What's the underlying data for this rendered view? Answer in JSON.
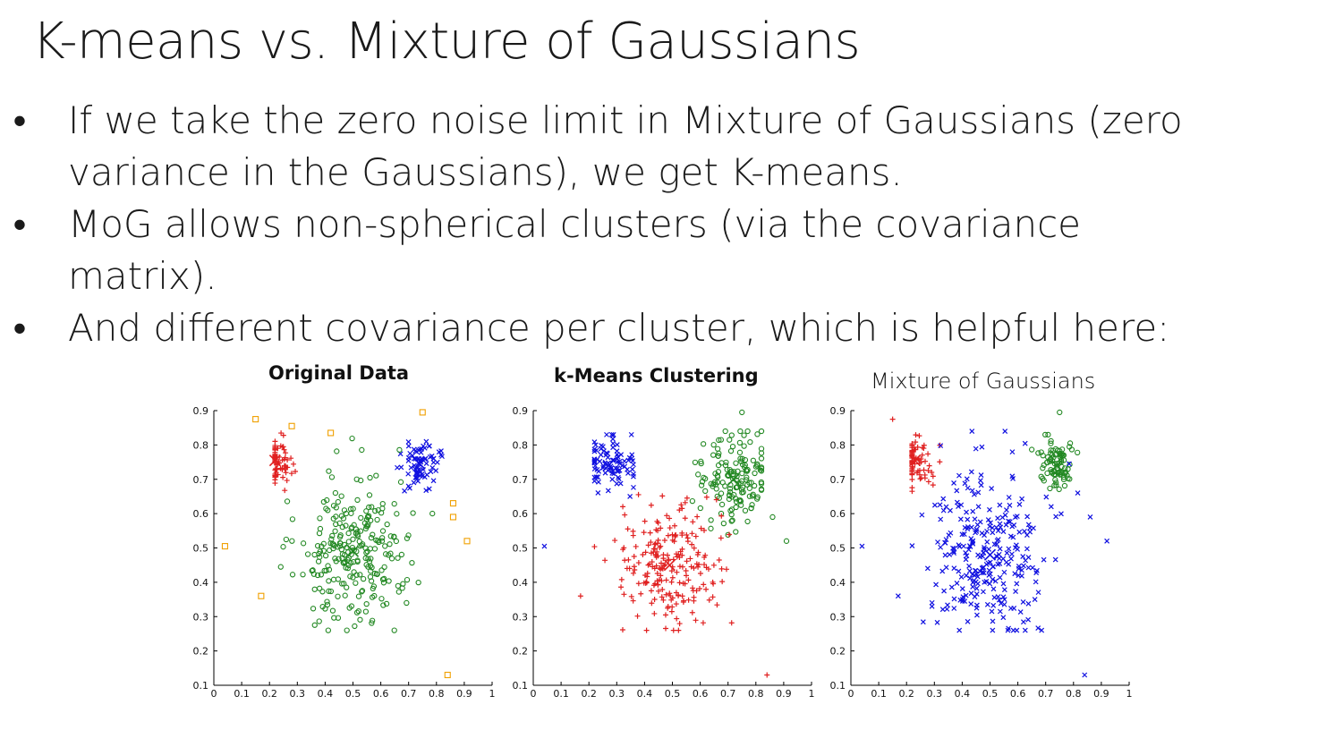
{
  "slide": {
    "title": "K-means vs. Mixture of Gaussians",
    "bullets": [
      {
        "marker": "•",
        "text": "If we take the zero noise limit in Mixture of Gaussians (zero variance in the Gaussians), we get K-means."
      },
      {
        "marker": "•",
        "text": "MoG allows non-spherical clusters (via the covariance matrix)."
      },
      {
        "marker": "•",
        "text": "And different covariance per cluster, which is helpful here:"
      }
    ]
  },
  "colors": {
    "red": "#e02020",
    "blue": "#1010e0",
    "green": "#228822",
    "orange": "#f0a000"
  },
  "chart_data": [
    {
      "type": "scatter",
      "title": "Original Data",
      "xlim": [
        0,
        1
      ],
      "ylim": [
        0.1,
        0.9
      ],
      "xticks": [
        "0",
        "0.1",
        "0.2",
        "0.3",
        "0.4",
        "0.5",
        "0.6",
        "0.7",
        "0.8",
        "0.9",
        "1"
      ],
      "yticks": [
        "0.1",
        "0.2",
        "0.3",
        "0.4",
        "0.5",
        "0.6",
        "0.7",
        "0.8",
        "0.9"
      ],
      "series": [
        {
          "color": "red",
          "marker": "plus",
          "cluster": {
            "cx": 0.22,
            "cy": 0.755,
            "sx": 0.035,
            "sy": 0.035,
            "n": 70
          }
        },
        {
          "color": "blue",
          "marker": "x",
          "cluster": {
            "cx": 0.74,
            "cy": 0.745,
            "sx": 0.035,
            "sy": 0.035,
            "n": 75
          }
        },
        {
          "color": "green",
          "marker": "circle",
          "cluster": {
            "cx": 0.5,
            "cy": 0.49,
            "sx": 0.1,
            "sy": 0.11,
            "n": 260
          }
        },
        {
          "color": "orange",
          "marker": "square",
          "points": [
            [
              0.15,
              0.875
            ],
            [
              0.28,
              0.855
            ],
            [
              0.42,
              0.835
            ],
            [
              0.75,
              0.895
            ],
            [
              0.04,
              0.505
            ],
            [
              0.17,
              0.36
            ],
            [
              0.86,
              0.63
            ],
            [
              0.86,
              0.59
            ],
            [
              0.91,
              0.52
            ],
            [
              0.84,
              0.13
            ]
          ]
        }
      ]
    },
    {
      "type": "scatter",
      "title": "k-Means Clustering",
      "xlim": [
        0,
        1
      ],
      "ylim": [
        0.1,
        0.9
      ],
      "xticks": [
        "0",
        "0.1",
        "0.2",
        "0.3",
        "0.4",
        "0.5",
        "0.6",
        "0.7",
        "0.8",
        "0.9",
        "1"
      ],
      "yticks": [
        "0.1",
        "0.2",
        "0.3",
        "0.4",
        "0.5",
        "0.6",
        "0.7",
        "0.8",
        "0.9"
      ],
      "series": [
        {
          "color": "blue",
          "marker": "x",
          "cluster": {
            "cx": 0.27,
            "cy": 0.74,
            "sx": 0.05,
            "sy": 0.04,
            "n": 90
          }
        },
        {
          "color": "green",
          "marker": "circle",
          "cluster": {
            "cx": 0.72,
            "cy": 0.7,
            "sx": 0.06,
            "sy": 0.06,
            "n": 150
          }
        },
        {
          "color": "red",
          "marker": "plus",
          "cluster": {
            "cx": 0.49,
            "cy": 0.45,
            "sx": 0.09,
            "sy": 0.09,
            "n": 220
          }
        },
        {
          "color": "blue",
          "marker": "x",
          "points": [
            [
              0.04,
              0.505
            ]
          ]
        },
        {
          "color": "red",
          "marker": "plus",
          "points": [
            [
              0.17,
              0.36
            ],
            [
              0.84,
              0.13
            ]
          ]
        },
        {
          "color": "green",
          "marker": "circle",
          "points": [
            [
              0.75,
              0.895
            ],
            [
              0.91,
              0.52
            ],
            [
              0.86,
              0.59
            ]
          ]
        }
      ]
    },
    {
      "type": "scatter",
      "title": "Mixture of Gaussians",
      "xlim": [
        0,
        1
      ],
      "ylim": [
        0.1,
        0.9
      ],
      "xticks": [
        "0",
        "0.1",
        "0.2",
        "0.3",
        "0.4",
        "0.5",
        "0.6",
        "0.7",
        "0.8",
        "0.9",
        "1"
      ],
      "yticks": [
        "0.1",
        "0.2",
        "0.3",
        "0.4",
        "0.5",
        "0.6",
        "0.7",
        "0.8",
        "0.9"
      ],
      "series": [
        {
          "color": "red",
          "marker": "plus",
          "cluster": {
            "cx": 0.23,
            "cy": 0.755,
            "sx": 0.04,
            "sy": 0.04,
            "n": 75
          }
        },
        {
          "color": "green",
          "marker": "circle",
          "cluster": {
            "cx": 0.74,
            "cy": 0.74,
            "sx": 0.035,
            "sy": 0.035,
            "n": 85
          }
        },
        {
          "color": "blue",
          "marker": "x",
          "cluster": {
            "cx": 0.5,
            "cy": 0.48,
            "sx": 0.11,
            "sy": 0.12,
            "n": 280
          }
        },
        {
          "color": "red",
          "marker": "plus",
          "points": [
            [
              0.15,
              0.875
            ]
          ]
        },
        {
          "color": "green",
          "marker": "circle",
          "points": [
            [
              0.75,
              0.895
            ]
          ]
        },
        {
          "color": "blue",
          "marker": "x",
          "points": [
            [
              0.04,
              0.505
            ],
            [
              0.17,
              0.36
            ],
            [
              0.92,
              0.52
            ],
            [
              0.84,
              0.13
            ],
            [
              0.86,
              0.59
            ]
          ]
        }
      ]
    }
  ]
}
